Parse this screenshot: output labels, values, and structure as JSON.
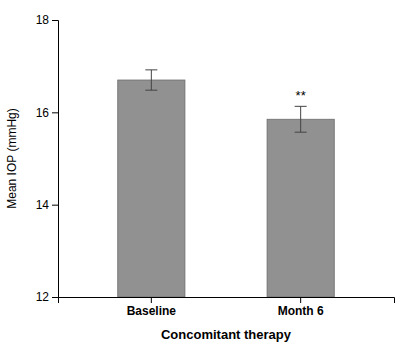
{
  "chart_data": {
    "type": "bar",
    "categories": [
      "Baseline",
      "Month 6"
    ],
    "values": [
      16.7,
      15.85
    ],
    "errors": [
      0.22,
      0.28
    ],
    "color": "#919191",
    "ylim": [
      12,
      18
    ],
    "yticks": [
      12,
      14,
      16,
      18
    ],
    "xlabel": "Concomitant therapy",
    "ylabel": "Mean IOP (mmHg)",
    "annotations": [
      {
        "text": "**",
        "category": "Month 6"
      }
    ],
    "grid": false
  }
}
